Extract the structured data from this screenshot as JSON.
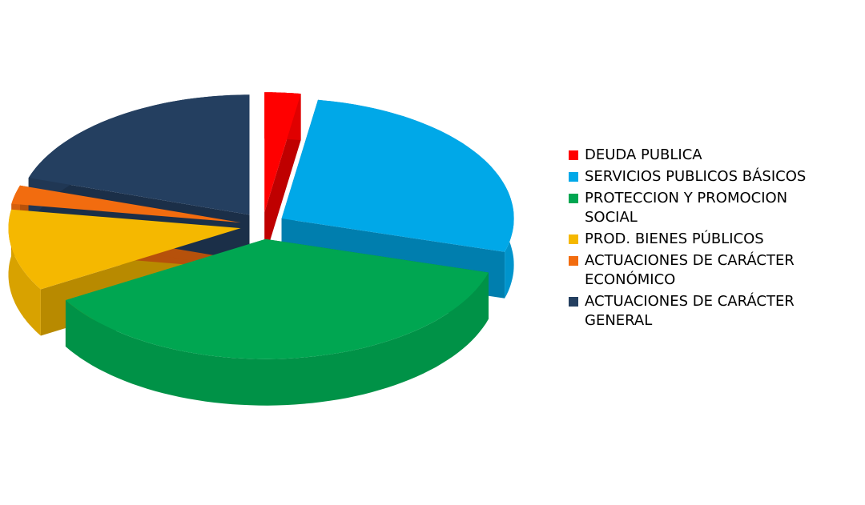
{
  "chart_data": {
    "type": "pie3d",
    "categories": [
      "DEUDA PUBLICA",
      "SERVICIOS PUBLICOS BÁSICOS",
      "PROTECCION Y PROMOCION SOCIAL",
      "PROD. BIENES PÚBLICOS",
      "ACTUACIONES DE CARÁCTER ECONÓMICO",
      "ACTUACIONES DE CARÁCTER GENERAL"
    ],
    "values": [
      2.5,
      27,
      37,
      11,
      2.5,
      20
    ],
    "colors": [
      "#ff0000",
      "#00a8e8",
      "#00a651",
      "#f5b800",
      "#f26c0f",
      "#243f60"
    ],
    "legend": "right"
  }
}
